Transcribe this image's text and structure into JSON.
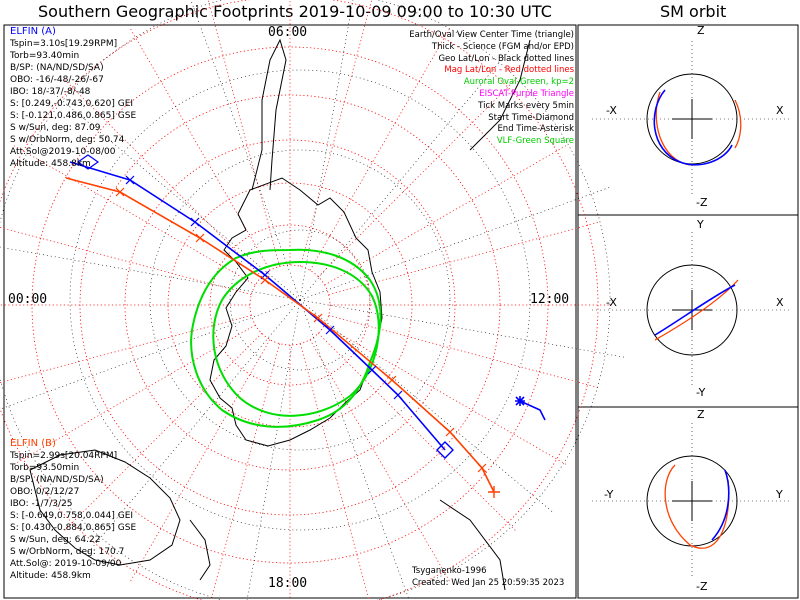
{
  "title": "Southern Geographic Footprints 2019-10-09 09:00 to 10:30 UTC",
  "orbit_title": "SM orbit",
  "colors": {
    "elfin_a": "#0000ff",
    "elfin_b": "#ff4000",
    "aurora": "#00dd00",
    "mag_grid": "#ff0000",
    "geo_grid": "#000000",
    "eiscat": "#ff00ff",
    "vlf": "#00cc00"
  },
  "hour_labels": {
    "top": "06:00",
    "left": "00:00",
    "right": "12:00",
    "bottom": "18:00"
  },
  "elfin_a": {
    "header": "ELFIN (A)",
    "lines": [
      "Tspin=3.10s[19.29RPM]",
      "Torb=93.40min",
      "B/SP: (NA/ND/SD/SA)",
      "OBO: -16/-48/-26/-67",
      "IBO: 18/-37/-8/-48",
      "S: [0.249,-0.743,0.620] GEI",
      "S: [-0.121,0.486,0.865] GSE",
      "S w/Sun, deg: 87.09",
      "S w/OrbNorm, deg: 50.74",
      "Att.Sol@2019-10-08/00",
      "Altitude: 458.8km"
    ]
  },
  "elfin_b": {
    "header": "ELFIN (B)",
    "lines": [
      "Tspin=2.99s[20.04RPM]",
      "Torb=93.50min",
      "B/SP: (NA/ND/SD/SA)",
      "OBO: 0/2/12/27",
      "IBO: -1/7/3/25",
      "S: [-0.649,0.758,0.044] GEI",
      "S: [0.430,-0.884,0.865] GSE",
      "S w/Sun, deg: 64.22",
      "S w/OrbNorm, deg: 170.7",
      "Att.Sol@: 2019-10-09/00",
      "Altitude: 458.9km"
    ]
  },
  "legend": [
    {
      "text": "Earth/Oval View Center Time (triangle)",
      "color": "#000000"
    },
    {
      "text": "Thick - Science (FGM and/or EPD)",
      "color": "#000000"
    },
    {
      "text": "Geo Lat/Lon - Black dotted lines",
      "color": "#000000"
    },
    {
      "text": "Mag Lat/Lon - Red dotted lines",
      "color": "#ff0000"
    },
    {
      "text": "Auroral Oval-Green, kp=2",
      "color": "#00cc00"
    },
    {
      "text": "EISCAT-Purple Triangle",
      "color": "#ff00ff"
    },
    {
      "text": "Tick Marks every 5min",
      "color": "#000000"
    },
    {
      "text": "Start Time-Diamond",
      "color": "#000000"
    },
    {
      "text": "End Time-Asterisk",
      "color": "#000000"
    },
    {
      "text": "VLF-Green Square",
      "color": "#00cc00"
    }
  ],
  "credits": {
    "model": "Tsyganenko-1996",
    "created": "Created: Wed Jan 25 20:59:35 2023"
  },
  "orbit_panels": [
    {
      "top": "Z",
      "bottom": "-Z",
      "left": "-X",
      "right": "X"
    },
    {
      "top": "Y",
      "bottom": "-Y",
      "left": "-X",
      "right": "X"
    },
    {
      "top": "Z",
      "bottom": "-Z",
      "left": "-Y",
      "right": "Y"
    }
  ],
  "chart_data": {
    "type": "polar-map",
    "hemisphere": "south",
    "local_time_labels": [
      "00:00",
      "06:00",
      "12:00",
      "18:00"
    ],
    "series": [
      {
        "name": "ELFIN (A)",
        "color": "#0000ff"
      },
      {
        "name": "ELFIN (B)",
        "color": "#ff4000"
      }
    ]
  }
}
